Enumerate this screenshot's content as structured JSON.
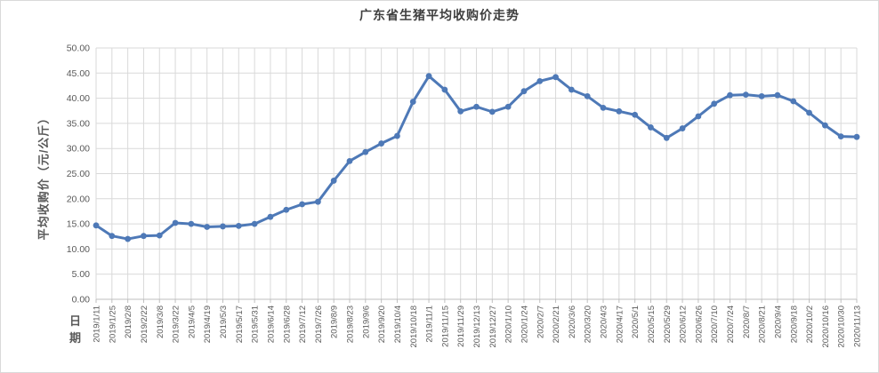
{
  "chart": {
    "title": "广东省生猪平均收购价走势",
    "y_axis_title": "平均收购价（元/公斤）",
    "x_axis_title": "日期"
  },
  "colors": {
    "line": "#4E79B7",
    "grid": "#D9D9D9",
    "axis": "#BFBFBF",
    "tick_text": "#595959",
    "title_text": "#3F3F3F",
    "background": "#FFFFFF"
  },
  "chart_data": {
    "type": "line",
    "title": "广东省生猪平均收购价走势",
    "xlabel": "日期",
    "ylabel": "平均收购价（元/公斤）",
    "ylim": [
      0,
      50
    ],
    "ytick_step": 5,
    "ytick_format": "two-decimals",
    "grid": true,
    "legend_position": "none",
    "marker": "circle",
    "x": [
      "2019/1/11",
      "2019/1/25",
      "2019/2/8",
      "2019/2/22",
      "2019/3/8",
      "2019/3/22",
      "2019/4/5",
      "2019/4/19",
      "2019/5/3",
      "2019/5/17",
      "2019/5/31",
      "2019/6/14",
      "2019/6/28",
      "2019/7/12",
      "2019/7/26",
      "2019/8/9",
      "2019/8/23",
      "2019/9/6",
      "2019/9/20",
      "2019/10/4",
      "2019/10/18",
      "2019/11/1",
      "2019/11/15",
      "2019/11/29",
      "2019/12/13",
      "2019/12/27",
      "2020/1/10",
      "2020/1/24",
      "2020/2/7",
      "2020/2/21",
      "2020/3/6",
      "2020/3/20",
      "2020/4/3",
      "2020/4/17",
      "2020/5/1",
      "2020/5/15",
      "2020/5/29",
      "2020/6/12",
      "2020/6/26",
      "2020/7/10",
      "2020/7/24",
      "2020/8/7",
      "2020/8/21",
      "2020/9/4",
      "2020/9/18",
      "2020/10/2",
      "2020/10/16",
      "2020/10/30",
      "2020/11/13"
    ],
    "values": [
      14.7,
      12.6,
      12.0,
      12.6,
      12.7,
      15.2,
      15.0,
      14.4,
      14.5,
      14.6,
      15.0,
      16.4,
      17.8,
      18.9,
      19.4,
      23.6,
      27.5,
      29.3,
      31.0,
      32.5,
      39.3,
      44.4,
      41.7,
      37.4,
      38.3,
      37.3,
      38.3,
      41.4,
      43.4,
      44.2,
      41.7,
      40.4,
      38.1,
      37.4,
      36.7,
      34.2,
      32.1,
      34.0,
      36.4,
      38.9,
      40.6,
      40.7,
      40.4,
      40.6,
      39.4,
      37.1,
      34.6,
      32.4,
      32.3
    ]
  }
}
